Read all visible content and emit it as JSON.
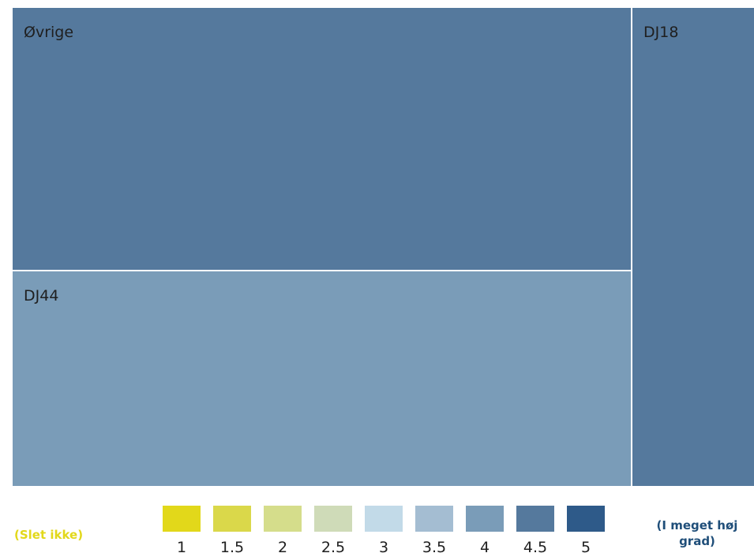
{
  "chart_data": {
    "type": "treemap",
    "items": [
      {
        "label": "Øvrige",
        "value": 0.3352,
        "score": 4.5
      },
      {
        "label": "DJ44",
        "value": 0.2758,
        "score": 4.0
      },
      {
        "label": "DJ18",
        "value": 0.1273,
        "score": 4.5
      }
    ],
    "legend": {
      "min_label": "(Slet ikke)",
      "max_label": "(I meget høj grad)",
      "scale": [
        {
          "value": "1",
          "color": "#e2d81a"
        },
        {
          "value": "1.5",
          "color": "#dad84a"
        },
        {
          "value": "2",
          "color": "#d5dd8b"
        },
        {
          "value": "2.5",
          "color": "#cfdbb8"
        },
        {
          "value": "3",
          "color": "#c2dae8"
        },
        {
          "value": "3.5",
          "color": "#a4bdd2"
        },
        {
          "value": "4",
          "color": "#7a9cb8"
        },
        {
          "value": "4.5",
          "color": "#55799d"
        },
        {
          "value": "5",
          "color": "#2e5a89"
        }
      ],
      "min_color": "#e2d81a",
      "max_color": "#1f4e79"
    }
  }
}
